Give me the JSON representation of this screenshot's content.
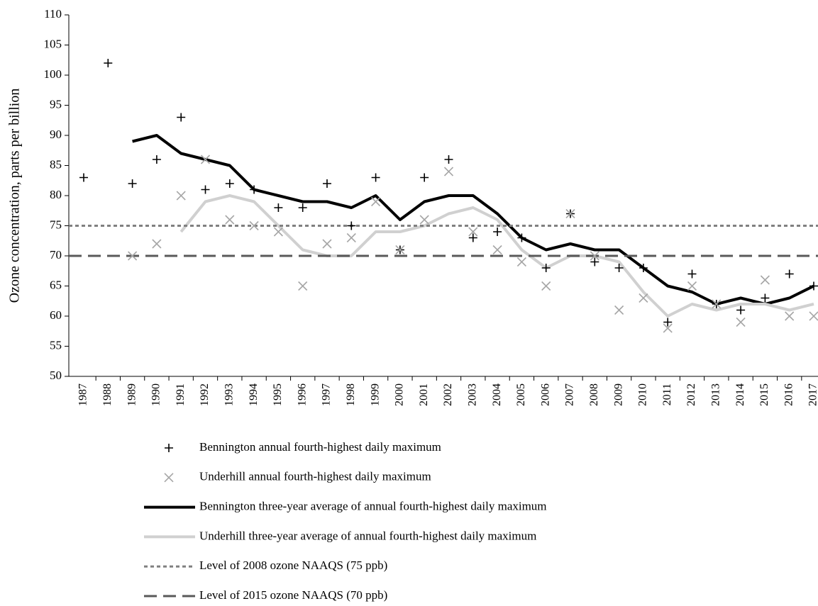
{
  "chart_data": {
    "type": "line",
    "y_label": "Ozone concentration, parts per billion",
    "categories": [
      "1987",
      "1988",
      "1989",
      "1990",
      "1991",
      "1992",
      "1993",
      "1994",
      "1995",
      "1996",
      "1997",
      "1998",
      "1999",
      "2000",
      "2001",
      "2002",
      "2003",
      "2004",
      "2005",
      "2006",
      "2007",
      "2008",
      "2009",
      "2010",
      "2011",
      "2012",
      "2013",
      "2014",
      "2015",
      "2016",
      "2017"
    ],
    "ylim": [
      50,
      110
    ],
    "yticks": [
      50,
      55,
      60,
      65,
      70,
      75,
      80,
      85,
      90,
      95,
      100,
      105,
      110
    ],
    "series": [
      {
        "name": "Bennington annual fourth-highest daily maximum",
        "style": "marker",
        "marker": "plus",
        "color": "#000000",
        "values": [
          83,
          102,
          82,
          86,
          93,
          81,
          82,
          81,
          78,
          78,
          82,
          75,
          83,
          71,
          83,
          86,
          73,
          74,
          73,
          68,
          77,
          69,
          68,
          68,
          59,
          67,
          62,
          61,
          63,
          67,
          65
        ]
      },
      {
        "name": "Underhill annual fourth-highest daily maximum",
        "style": "marker",
        "marker": "x",
        "color": "#a6a6a6",
        "values": [
          null,
          null,
          70,
          72,
          80,
          86,
          76,
          75,
          74,
          65,
          72,
          73,
          79,
          71,
          76,
          84,
          74,
          71,
          69,
          65,
          77,
          70,
          61,
          63,
          58,
          65,
          62,
          59,
          66,
          60,
          60
        ]
      },
      {
        "name": "Bennington three-year average of annual fourth-highest daily maximum",
        "style": "line",
        "color": "#000000",
        "values": [
          null,
          null,
          89,
          90,
          87,
          86,
          85,
          81,
          80,
          79,
          79,
          78,
          80,
          76,
          79,
          80,
          80,
          77,
          73,
          71,
          72,
          71,
          71,
          68,
          65,
          64,
          62,
          63,
          62,
          63,
          65
        ]
      },
      {
        "name": "Underhill three-year average of annual fourth-highest daily maximum",
        "style": "line",
        "color": "#d0d0d0",
        "values": [
          null,
          null,
          null,
          null,
          74,
          79,
          80,
          79,
          75,
          71,
          70,
          70,
          74,
          74,
          75,
          77,
          78,
          76,
          71,
          68,
          70,
          70,
          69,
          64,
          60,
          62,
          61,
          62,
          62,
          61,
          62
        ]
      },
      {
        "name": "Level of 2008 ozone NAAQS (75 ppb)",
        "style": "hline",
        "color": "#808080",
        "value": 75
      },
      {
        "name": "Level of 2015 ozone NAAQS (70 ppb)",
        "style": "hline",
        "color": "#595959",
        "value": 70
      }
    ]
  }
}
